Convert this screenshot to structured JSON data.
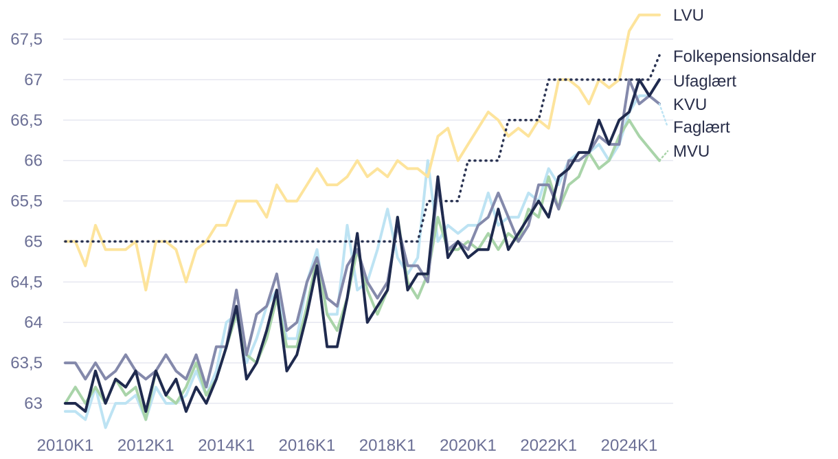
{
  "chart_data": {
    "type": "line",
    "title": "",
    "xlabel": "",
    "ylabel": "",
    "ylim": [
      62.7,
      67.85
    ],
    "grid": true,
    "legend": "right (labels at line ends)",
    "x_start": "2010K1",
    "x_end": "2024K4",
    "x_ticks": [
      "2010K1",
      "2012K1",
      "2014K1",
      "2016K1",
      "2018K1",
      "2020K1",
      "2022K1",
      "2024K1"
    ],
    "y_ticks": [
      {
        "value": 63,
        "label": "63"
      },
      {
        "value": 63.5,
        "label": "63,5"
      },
      {
        "value": 64,
        "label": "64"
      },
      {
        "value": 64.5,
        "label": "64,5"
      },
      {
        "value": 65,
        "label": "65"
      },
      {
        "value": 65.5,
        "label": "65,5"
      },
      {
        "value": 66,
        "label": "66"
      },
      {
        "value": 66.5,
        "label": "66,5"
      },
      {
        "value": 67,
        "label": "67"
      },
      {
        "value": 67.5,
        "label": "67,5"
      }
    ],
    "series": [
      {
        "name": "Faglært",
        "color": "#bde3f3",
        "style": "solid",
        "values": [
          62.9,
          62.9,
          62.8,
          63.2,
          62.7,
          63.0,
          63.0,
          63.1,
          62.8,
          63.2,
          63.0,
          63.0,
          63.1,
          63.4,
          63.1,
          63.4,
          64.0,
          64.1,
          63.5,
          63.8,
          64.2,
          64.4,
          63.8,
          63.8,
          64.5,
          64.9,
          64.1,
          64.1,
          65.2,
          64.4,
          64.5,
          64.9,
          65.4,
          64.8,
          64.6,
          64.8,
          66.0,
          65.0,
          65.2,
          65.1,
          65.2,
          65.2,
          65.6,
          65.2,
          65.3,
          65.3,
          65.6,
          65.5,
          65.9,
          65.7,
          66.0,
          66.1,
          66.1,
          66.2,
          66.0,
          66.2,
          66.6,
          66.8,
          66.8,
          66.7
        ]
      },
      {
        "name": "MVU",
        "color": "#a9d4a9",
        "style": "solid",
        "values": [
          63.0,
          63.2,
          63.0,
          63.2,
          63.0,
          63.3,
          63.1,
          63.2,
          62.8,
          63.4,
          63.1,
          63.0,
          63.2,
          63.5,
          63.1,
          63.3,
          63.7,
          64.1,
          63.6,
          63.5,
          63.8,
          64.3,
          63.7,
          63.7,
          64.2,
          64.8,
          64.1,
          63.9,
          64.3,
          64.9,
          64.4,
          64.1,
          64.4,
          65.3,
          64.5,
          64.3,
          64.6,
          65.3,
          64.9,
          64.9,
          65.0,
          64.9,
          65.1,
          64.9,
          65.1,
          65.0,
          65.4,
          65.3,
          65.8,
          65.4,
          65.7,
          65.8,
          66.1,
          65.9,
          66.0,
          66.3,
          66.5,
          66.3,
          66.15,
          66.0
        ]
      },
      {
        "name": "KVU",
        "color": "#8489ab",
        "style": "solid",
        "values": [
          63.5,
          63.5,
          63.3,
          63.5,
          63.3,
          63.4,
          63.6,
          63.4,
          63.3,
          63.4,
          63.6,
          63.4,
          63.3,
          63.6,
          63.2,
          63.7,
          63.7,
          64.4,
          63.6,
          64.1,
          64.2,
          64.6,
          63.9,
          64.0,
          64.5,
          64.8,
          64.3,
          64.2,
          64.7,
          64.9,
          64.5,
          64.3,
          64.5,
          65.2,
          64.7,
          64.7,
          64.5,
          65.7,
          64.9,
          65.0,
          64.9,
          65.2,
          65.3,
          65.6,
          65.3,
          65.0,
          65.2,
          65.7,
          65.7,
          65.4,
          66.0,
          66.0,
          66.1,
          66.3,
          66.2,
          66.2,
          67.0,
          66.7,
          66.8,
          66.7
        ]
      },
      {
        "name": "Ufaglært",
        "color": "#1f2a4e",
        "style": "solid",
        "values": [
          63.0,
          63.0,
          62.9,
          63.4,
          63.0,
          63.3,
          63.2,
          63.4,
          62.9,
          63.4,
          63.1,
          63.3,
          62.9,
          63.2,
          63.0,
          63.3,
          63.7,
          64.2,
          63.3,
          63.5,
          63.9,
          64.4,
          63.4,
          63.6,
          64.1,
          64.7,
          63.7,
          63.7,
          64.3,
          65.1,
          64.0,
          64.2,
          64.4,
          65.3,
          64.4,
          64.6,
          64.6,
          65.8,
          64.8,
          65.0,
          64.8,
          64.9,
          64.9,
          65.4,
          64.9,
          65.1,
          65.3,
          65.5,
          65.3,
          65.8,
          65.9,
          66.1,
          66.1,
          66.5,
          66.2,
          66.5,
          66.6,
          67.0,
          66.8,
          67.0
        ]
      },
      {
        "name": "LVU",
        "color": "#fde49c",
        "style": "solid",
        "values": [
          65.0,
          65.0,
          64.7,
          65.2,
          64.9,
          64.9,
          64.9,
          65.0,
          64.4,
          65.0,
          65.0,
          64.9,
          64.5,
          64.9,
          65.0,
          65.2,
          65.2,
          65.5,
          65.5,
          65.5,
          65.3,
          65.7,
          65.5,
          65.5,
          65.7,
          65.9,
          65.7,
          65.7,
          65.8,
          66.0,
          65.8,
          65.9,
          65.8,
          66.0,
          65.9,
          65.9,
          65.8,
          66.3,
          66.4,
          66.0,
          66.2,
          66.4,
          66.6,
          66.5,
          66.3,
          66.4,
          66.3,
          66.5,
          66.4,
          67.0,
          67.0,
          66.9,
          66.7,
          67.0,
          66.9,
          67.0,
          67.6,
          67.8,
          67.8,
          67.8
        ]
      },
      {
        "name": "Folkepensionsalder",
        "color": "#2a3352",
        "style": "dotted",
        "values": [
          65,
          65,
          65,
          65,
          65,
          65,
          65,
          65,
          65,
          65,
          65,
          65,
          65,
          65,
          65,
          65,
          65,
          65,
          65,
          65,
          65,
          65,
          65,
          65,
          65,
          65,
          65,
          65,
          65,
          65,
          65,
          65,
          65,
          65,
          65,
          65,
          65.5,
          65.5,
          65.5,
          65.5,
          66,
          66,
          66,
          66,
          66.5,
          66.5,
          66.5,
          66.5,
          67,
          67,
          67,
          67,
          67,
          67,
          67,
          67,
          67,
          67,
          67,
          67.3
        ]
      }
    ],
    "legend_order": [
      "LVU",
      "Folkepensionsalder",
      "Ufaglært",
      "KVU",
      "Faglært",
      "MVU"
    ]
  }
}
